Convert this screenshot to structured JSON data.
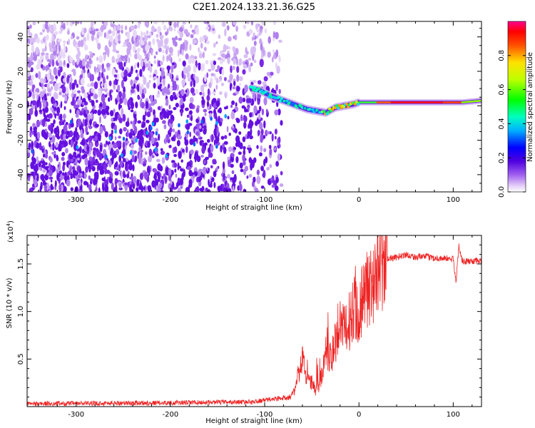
{
  "figure_title": "C2E1.2024.133.21.36.G25",
  "chart_data": [
    {
      "type": "heatmap",
      "title": "",
      "xlabel": "Height of straight line (km)",
      "ylabel": "Frequency (Hz)",
      "xlim": [
        -352,
        130
      ],
      "ylim": [
        -50,
        49
      ],
      "xticks": [
        -300,
        -200,
        -100,
        0,
        100
      ],
      "yticks": [
        -40,
        -20,
        0,
        20,
        40
      ],
      "colorbar": {
        "label": "Normalized spectral amplitude",
        "range": [
          0,
          1
        ],
        "ticks": [
          "0.0",
          "0.2",
          "0.4",
          "0.6",
          "0.8"
        ],
        "tick_values": [
          0.0,
          0.2,
          0.4,
          0.6,
          0.8
        ],
        "colormap": [
          "#ffffff",
          "#e6d2f7",
          "#a060f0",
          "#6000e0",
          "#0000ff",
          "#00c0ff",
          "#00ff60",
          "#c0ff00",
          "#ffff00",
          "#ff8000",
          "#ff0000",
          "#ff00a0"
        ]
      },
      "signal_trace": {
        "description_free_points": [
          [
            -115,
            10
          ],
          [
            -105,
            9
          ],
          [
            -95,
            6
          ],
          [
            -85,
            4
          ],
          [
            -75,
            2
          ],
          [
            -65,
            0
          ],
          [
            -55,
            -2
          ],
          [
            -45,
            -3
          ],
          [
            -35,
            -4
          ],
          [
            -25,
            -1
          ],
          [
            -15,
            0
          ],
          [
            -5,
            1
          ],
          [
            0,
            2
          ],
          [
            20,
            2
          ],
          [
            50,
            2
          ],
          [
            80,
            2
          ],
          [
            110,
            2
          ],
          [
            130,
            3
          ]
        ],
        "peak_amplitude_region": [
          20,
          130
        ]
      }
    },
    {
      "type": "line",
      "title": "",
      "xlabel": "Height of straight line (km)",
      "ylabel": "SNR (10 * v/v)",
      "y_multiplier_label": "(x10",
      "y_multiplier_exp": "4",
      "y_multiplier_close": ")",
      "xlim": [
        -352,
        130
      ],
      "ylim": [
        0,
        18000
      ],
      "xticks": [
        -300,
        -200,
        -100,
        0,
        100
      ],
      "yticks": [
        5000,
        10000,
        15000
      ],
      "ytick_labels": [
        "0.5",
        "1.0",
        "1.5"
      ],
      "series_color": "#ee2222",
      "envelope": {
        "x": [
          -352,
          -200,
          -110,
          -100,
          -90,
          -80,
          -70,
          -65,
          -60,
          -55,
          -50,
          -45,
          -40,
          -35,
          -30,
          -25,
          -20,
          -15,
          -10,
          -5,
          0,
          5,
          10,
          15,
          20,
          25,
          30,
          40,
          50,
          60,
          70,
          80,
          90,
          100,
          103,
          106,
          110,
          120,
          130
        ],
        "y": [
          300,
          400,
          500,
          700,
          800,
          900,
          1200,
          3000,
          5000,
          3000,
          2500,
          1500,
          3000,
          6000,
          5000,
          7000,
          8000,
          8000,
          9000,
          11000,
          10000,
          12000,
          12000,
          13000,
          14000,
          15000,
          15500,
          15700,
          16000,
          15700,
          15800,
          15600,
          15600,
          15500,
          13000,
          17000,
          15200,
          15300,
          15300
        ]
      }
    }
  ]
}
